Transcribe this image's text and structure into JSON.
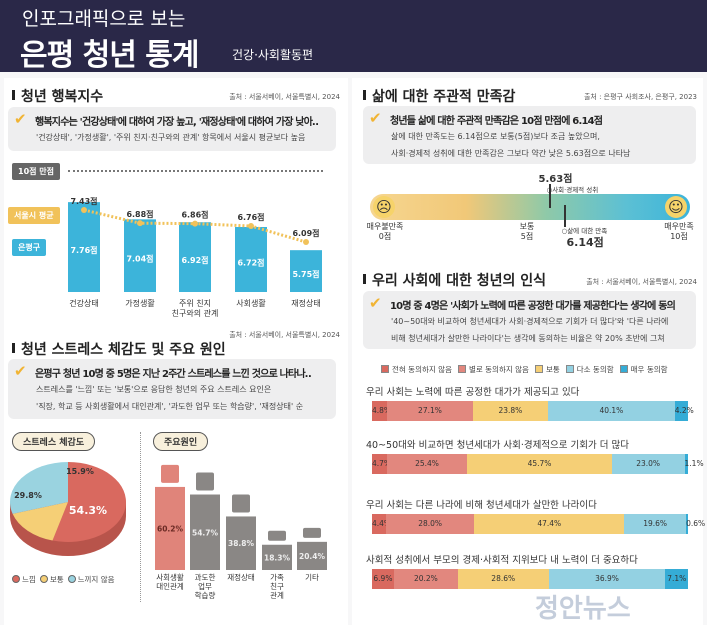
{
  "header": {
    "subtitle": "인포그래픽으로 보는",
    "title": "은평 청년 통계",
    "tag": "건강·사회활동편"
  },
  "happiness": {
    "title": "청년 행복지수",
    "source": "출처 : 서울서베이, 서울특별시, 2024",
    "headline": "행복지수는 '건강상태'에 대하여 가장 높고, '재정상태'에 대하여 가장 낮아‥",
    "detail": "'건강상태', '가정생활', '주위 친지·친구와의 관계' 항목에서 서울시 평균보다 높음",
    "max_label": "10점 만점",
    "seoul_label": "서울시 평균",
    "ep_label": "은평구",
    "colors": {
      "eunpyeong": "#3cb4da",
      "seoul": "#f1c25a"
    },
    "chart_data": {
      "type": "bar",
      "unit": "점",
      "categories": [
        "건강상태",
        "가정생활",
        "주위 친지\n친구와의 관계",
        "사회생활",
        "재정상태"
      ],
      "series": [
        {
          "name": "은평구",
          "values": [
            7.76,
            7.04,
            6.92,
            6.72,
            5.75
          ]
        },
        {
          "name": "서울시 평균",
          "values": [
            7.43,
            6.88,
            6.86,
            6.76,
            6.09
          ]
        }
      ]
    },
    "value_labels_ep": [
      "7.76점",
      "7.04점",
      "6.92점",
      "6.72점",
      "5.75점"
    ],
    "value_labels_seoul": [
      "7.43점",
      "6.88점",
      "6.86점",
      "6.76점",
      "6.09점"
    ],
    "cat_labels": [
      "건강상태",
      "가정생활",
      "주위 친지 친구와의 관계",
      "사회생활",
      "재정상태"
    ]
  },
  "stress": {
    "title": "청년 스트레스 체감도 및 주요 원인",
    "source": "출처 : 서울서베이, 서울특별시, 2024",
    "headline": "은평구 청년 10명 중 5명은 지난 2주간 스트레스를 느낀 것으로 나타나‥",
    "detail1": "스트레스를 '느낌' 또는 '보통'으로 응답한 청년의 주요 스트레스 요인은",
    "detail2": "'직장, 학교 등 사회생활에서 대인관계', '과도한 업무 또는 학습량', '재정상태' 순",
    "pie_title": "스트레스 체감도",
    "causes_title": "주요원인",
    "pie": {
      "type": "pie",
      "slices": [
        {
          "name": "느낌",
          "value": 54.3,
          "label": "54.3%",
          "color": "#d9695f"
        },
        {
          "name": "보통",
          "value": 15.9,
          "label": "15.9%",
          "color": "#f5cf76"
        },
        {
          "name": "느끼지 않음",
          "value": 29.8,
          "label": "29.8%",
          "color": "#9ad3e0"
        }
      ]
    },
    "causes": {
      "type": "bar",
      "categories": [
        "사회생활 대인관계",
        "과도한 업무 학습량",
        "재정상태",
        "가족 친구 관계",
        "기타"
      ],
      "values": [
        60.2,
        54.7,
        38.8,
        18.3,
        20.4
      ],
      "labels": [
        "60.2%",
        "54.7%",
        "38.8%",
        "18.3%",
        "20.4%"
      ],
      "colors": {
        "top": "#e0847a",
        "other": "#8a8785"
      }
    }
  },
  "satisfaction": {
    "title": "삶에 대한 주관적 만족감",
    "source": "출처 : 은평구 사회조사, 은평구, 2023",
    "headline": "청년들 삶에 대한 주관적 만족감은 10점 만점에 6.14점",
    "detail1": "삶에 대한 만족도는 6.14점으로 보통(5점)보다 조금 높았으며,",
    "detail2": "사회·경제적 성취에 대한 만족감은 그보다 약간 낮은 5.63점으로 나타남",
    "scale_min": 0,
    "scale_max": 10,
    "marker_social": {
      "value": 5.63,
      "label": "5.63점",
      "name": "사회·경제적 성취"
    },
    "marker_life": {
      "value": 6.14,
      "label": "6.14점",
      "name": "삶에 대한 만족"
    },
    "left_label": "매우불만족",
    "left_score": "0점",
    "mid_label": "보통",
    "mid_score": "5점",
    "right_label": "매우만족",
    "right_score": "10점",
    "icons": [
      "sad-face-icon",
      "happy-face-icon"
    ]
  },
  "perception": {
    "title": "우리 사회에 대한 청년의 인식",
    "source": "출처 : 서울서베이, 서울특별시, 2024",
    "headline": "10명 중 4명은 '사회가 노력에 따른 공정한 대가를 제공한다'는 생각에 동의",
    "detail1": "'40~50대와 비교하여 청년세대가 사회·경제적으로 기회가 더 많다'와 '다른 나라에",
    "detail2": "비해 청년세대가 살만한 나라이다'는 생각에 동의하는 비율은 약 20% 초반에 그쳐",
    "legend": [
      {
        "name": "전혀 동의하지 않음",
        "color": "#d9695f"
      },
      {
        "name": "별로 동의하지 않음",
        "color": "#e2877e"
      },
      {
        "name": "보통",
        "color": "#f5cf76"
      },
      {
        "name": "다소 동의함",
        "color": "#93d1e2"
      },
      {
        "name": "매우 동의함",
        "color": "#35acd6"
      }
    ],
    "chart_data": {
      "type": "bar",
      "stacked": true,
      "horizontal": true,
      "unit": "%",
      "rows": [
        {
          "label": "우리 사회는 노력에 따른 공정한 대가가 제공되고 있다",
          "values": [
            4.8,
            27.1,
            23.8,
            40.1,
            4.2
          ]
        },
        {
          "label": "40~50대와 비교하면 청년세대가 사회·경제적으로 기회가 더 많다",
          "values": [
            4.7,
            25.4,
            45.7,
            23.0,
            1.1
          ]
        },
        {
          "label": "우리 사회는 다른 나라에 비해 청년세대가 살만한 나라이다",
          "values": [
            4.4,
            28.0,
            47.4,
            19.6,
            0.6
          ]
        },
        {
          "label": "사회적 성취에서 부모의 경제·사회적 지위보다 내 노력이 더 중요하다",
          "values": [
            6.9,
            20.2,
            28.6,
            36.9,
            7.1
          ]
        }
      ]
    }
  },
  "watermark": "정안뉴스"
}
